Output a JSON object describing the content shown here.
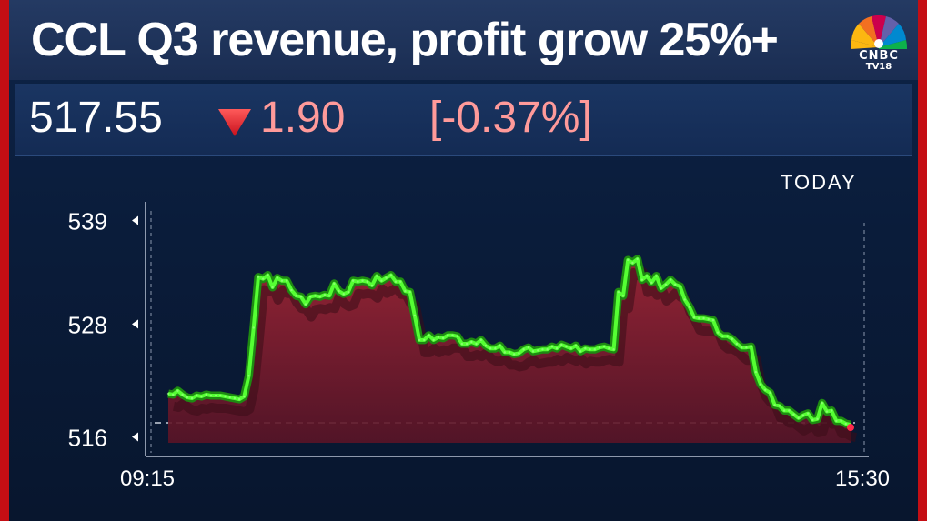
{
  "headline": "CCL Q3 revenue, profit grow 25%+",
  "logo": {
    "line1": "CNBC",
    "line2": "TV18"
  },
  "quote": {
    "price": "517.55",
    "change": "1.90",
    "change_pct": "[-0.37%]",
    "direction": "down"
  },
  "period_label": "TODAY",
  "colors": {
    "brand_red": "#c40e14",
    "background": "#0b1e3c",
    "line": "#4dff2e",
    "area": "#7a1a2a",
    "negative_text": "#ff9a9a"
  },
  "chart_data": {
    "type": "area",
    "title": "",
    "xlabel": "",
    "ylabel": "",
    "x_tick_labels": [
      "09:15",
      "15:30"
    ],
    "y_ticks": [
      539,
      528,
      516
    ],
    "y_tick_labels": [
      "539",
      "528",
      "516"
    ],
    "ylim": [
      514.6,
      540.4
    ],
    "reference_value": 517.5,
    "series": [
      {
        "values": [
          520.6,
          520.5,
          520.9,
          520.5,
          520.2,
          520.1,
          520.4,
          520.3,
          520.5,
          520.4,
          520.4,
          520.4,
          520.3,
          520.2,
          520.1,
          520.0,
          520.3,
          522.5,
          527.6,
          533.0,
          532.8,
          533.2,
          531.9,
          532.9,
          532.6,
          532.6,
          531.6,
          531.0,
          530.9,
          530.1,
          530.9,
          531.0,
          530.9,
          531.1,
          531.0,
          532.3,
          531.5,
          531.2,
          531.4,
          532.6,
          532.5,
          532.6,
          532.5,
          532.1,
          533.1,
          532.6,
          532.9,
          533.2,
          532.5,
          532.5,
          531.5,
          531.4,
          528.9,
          526.3,
          526.3,
          526.8,
          526.3,
          526.6,
          526.5,
          526.8,
          526.8,
          526.7,
          525.9,
          525.9,
          526.1,
          525.9,
          526.3,
          525.7,
          525.4,
          525.4,
          525.7,
          525.0,
          525.0,
          524.8,
          524.9,
          525.3,
          525.5,
          525.1,
          525.2,
          525.3,
          525.3,
          525.6,
          525.4,
          525.8,
          525.6,
          525.4,
          525.7,
          525.1,
          525.4,
          525.3,
          525.3,
          525.5,
          525.6,
          525.4,
          525.3,
          531.4,
          531.0,
          534.8,
          534.5,
          534.9,
          532.7,
          533.1,
          532.4,
          533.1,
          531.8,
          532.2,
          532.7,
          532.2,
          532.0,
          530.6,
          529.8,
          528.7,
          528.6,
          528.6,
          528.5,
          528.4,
          527.1,
          526.7,
          526.7,
          526.4,
          525.9,
          525.5,
          525.5,
          525.6,
          522.9,
          521.6,
          521.0,
          520.7,
          519.4,
          519.3,
          518.8,
          518.8,
          518.4,
          518.0,
          518.3,
          518.5,
          517.8,
          517.9,
          519.6,
          518.7,
          518.8,
          517.7,
          517.7,
          517.4,
          517.3
        ]
      }
    ],
    "grid": false
  }
}
